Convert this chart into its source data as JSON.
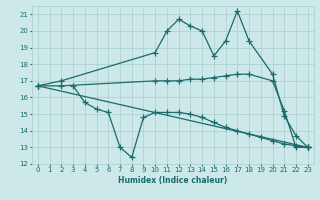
{
  "xlabel": "Humidex (Indice chaleur)",
  "xlim": [
    -0.5,
    23.5
  ],
  "ylim": [
    12,
    21.5
  ],
  "yticks": [
    12,
    13,
    14,
    15,
    16,
    17,
    18,
    19,
    20,
    21
  ],
  "xticks": [
    0,
    1,
    2,
    3,
    4,
    5,
    6,
    7,
    8,
    9,
    10,
    11,
    12,
    13,
    14,
    15,
    16,
    17,
    18,
    19,
    20,
    21,
    22,
    23
  ],
  "bg_color": "#cce8e8",
  "grid_color": "#aacece",
  "line_color": "#1a6b6b",
  "line_width": 0.9,
  "marker": "+",
  "marker_size": 4,
  "marker_ew": 0.9,
  "curves": [
    {
      "x": [
        0,
        2,
        10,
        11,
        12,
        13,
        14,
        15,
        16,
        17,
        18,
        20,
        21,
        22,
        23
      ],
      "y": [
        16.7,
        17.0,
        18.7,
        20.0,
        20.7,
        20.3,
        20.0,
        18.5,
        19.4,
        21.2,
        19.4,
        17.4,
        14.9,
        13.7,
        13.0
      ]
    },
    {
      "x": [
        0,
        2,
        10,
        11,
        12,
        13,
        14,
        15,
        16,
        17,
        18,
        20,
        21,
        22,
        23
      ],
      "y": [
        16.7,
        16.7,
        17.0,
        17.0,
        17.0,
        17.1,
        17.1,
        17.2,
        17.3,
        17.4,
        17.4,
        17.0,
        15.2,
        13.0,
        13.0
      ]
    },
    {
      "x": [
        0,
        23
      ],
      "y": [
        16.7,
        13.0
      ]
    },
    {
      "x": [
        3,
        4,
        5,
        6,
        7,
        8,
        9,
        10,
        11,
        12,
        13,
        14,
        15,
        16,
        17,
        18,
        19,
        20,
        21,
        22,
        23
      ],
      "y": [
        16.7,
        15.7,
        15.3,
        15.1,
        13.0,
        12.4,
        14.8,
        15.1,
        15.1,
        15.1,
        15.0,
        14.8,
        14.5,
        14.2,
        14.0,
        13.8,
        13.6,
        13.4,
        13.2,
        13.1,
        13.0
      ]
    }
  ]
}
